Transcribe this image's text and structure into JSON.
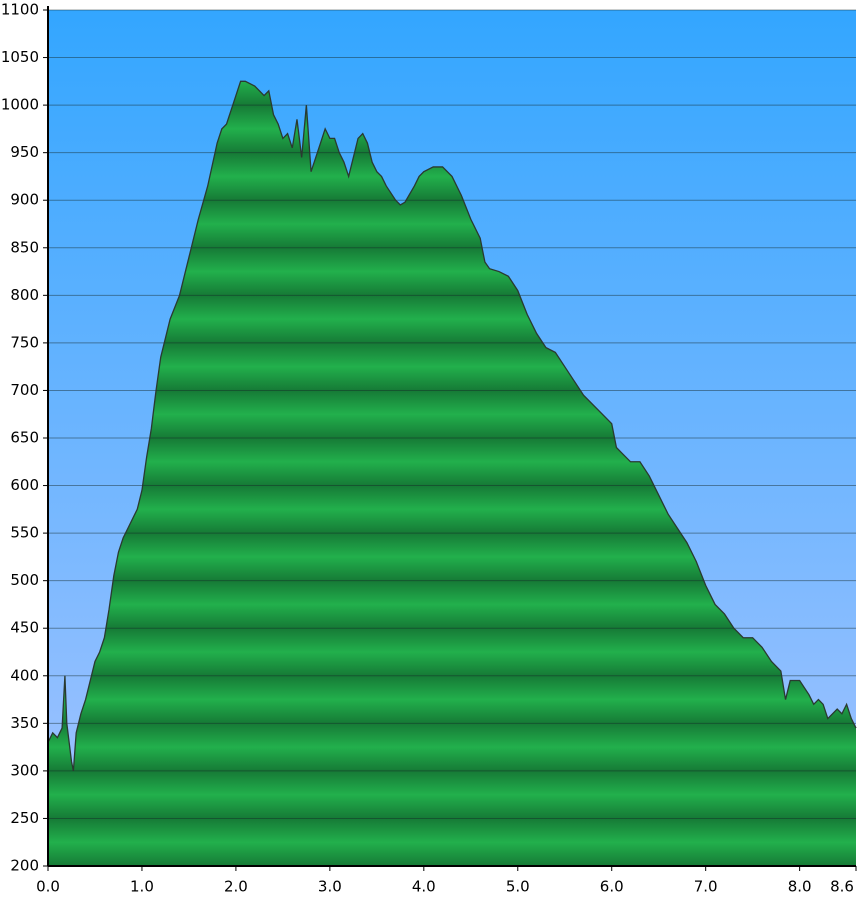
{
  "chart_data": {
    "type": "area",
    "x": [
      0.0,
      0.05,
      0.1,
      0.15,
      0.18,
      0.2,
      0.25,
      0.27,
      0.3,
      0.35,
      0.4,
      0.45,
      0.5,
      0.55,
      0.6,
      0.65,
      0.7,
      0.75,
      0.8,
      0.85,
      0.9,
      0.95,
      1.0,
      1.05,
      1.1,
      1.15,
      1.2,
      1.3,
      1.4,
      1.5,
      1.6,
      1.7,
      1.8,
      1.85,
      1.9,
      2.0,
      2.05,
      2.1,
      2.2,
      2.3,
      2.35,
      2.4,
      2.45,
      2.5,
      2.55,
      2.6,
      2.65,
      2.7,
      2.75,
      2.8,
      2.85,
      2.9,
      2.95,
      3.0,
      3.05,
      3.1,
      3.15,
      3.2,
      3.25,
      3.3,
      3.35,
      3.4,
      3.45,
      3.5,
      3.55,
      3.6,
      3.7,
      3.75,
      3.8,
      3.9,
      3.95,
      4.0,
      4.1,
      4.2,
      4.3,
      4.4,
      4.5,
      4.6,
      4.65,
      4.7,
      4.8,
      4.9,
      5.0,
      5.1,
      5.2,
      5.3,
      5.4,
      5.5,
      5.6,
      5.7,
      5.8,
      5.9,
      6.0,
      6.05,
      6.1,
      6.2,
      6.3,
      6.4,
      6.5,
      6.6,
      6.7,
      6.8,
      6.9,
      7.0,
      7.1,
      7.2,
      7.3,
      7.4,
      7.5,
      7.6,
      7.7,
      7.8,
      7.85,
      7.9,
      8.0,
      8.1,
      8.15,
      8.2,
      8.25,
      8.3,
      8.4,
      8.45,
      8.5,
      8.55,
      8.6
    ],
    "values": [
      330,
      340,
      335,
      345,
      400,
      350,
      310,
      300,
      340,
      360,
      375,
      395,
      415,
      425,
      440,
      470,
      505,
      530,
      545,
      555,
      565,
      575,
      595,
      630,
      660,
      700,
      735,
      775,
      800,
      840,
      880,
      915,
      960,
      975,
      980,
      1010,
      1025,
      1025,
      1020,
      1010,
      1015,
      990,
      980,
      965,
      970,
      955,
      985,
      945,
      1000,
      930,
      945,
      960,
      975,
      965,
      965,
      950,
      940,
      925,
      945,
      965,
      970,
      960,
      940,
      930,
      925,
      915,
      900,
      895,
      898,
      915,
      925,
      930,
      935,
      935,
      925,
      905,
      880,
      860,
      835,
      828,
      825,
      820,
      805,
      780,
      760,
      745,
      740,
      725,
      710,
      695,
      685,
      675,
      665,
      640,
      635,
      625,
      625,
      610,
      590,
      570,
      555,
      540,
      520,
      495,
      475,
      465,
      450,
      440,
      440,
      430,
      415,
      405,
      375,
      395,
      395,
      380,
      370,
      375,
      370,
      355,
      365,
      360,
      370,
      355,
      345
    ],
    "color": "#1fa84a",
    "xlim": [
      0,
      8.6
    ],
    "xticks": [
      {
        "value": 0,
        "label": "0.0"
      },
      {
        "value": 1,
        "label": "1.0"
      },
      {
        "value": 2,
        "label": "2.0"
      },
      {
        "value": 3,
        "label": "3.0"
      },
      {
        "value": 4,
        "label": "4.0"
      },
      {
        "value": 5,
        "label": "5.0"
      },
      {
        "value": 6,
        "label": "6.0"
      },
      {
        "value": 7,
        "label": "7.0"
      },
      {
        "value": 8,
        "label": "8.0"
      },
      8.6
    ],
    "ylim": [
      200,
      1100
    ],
    "yticks": [
      200,
      250,
      300,
      350,
      400,
      450,
      500,
      550,
      600,
      650,
      700,
      750,
      800,
      850,
      900,
      950,
      1000,
      1050,
      1100
    ],
    "grid": true
  }
}
